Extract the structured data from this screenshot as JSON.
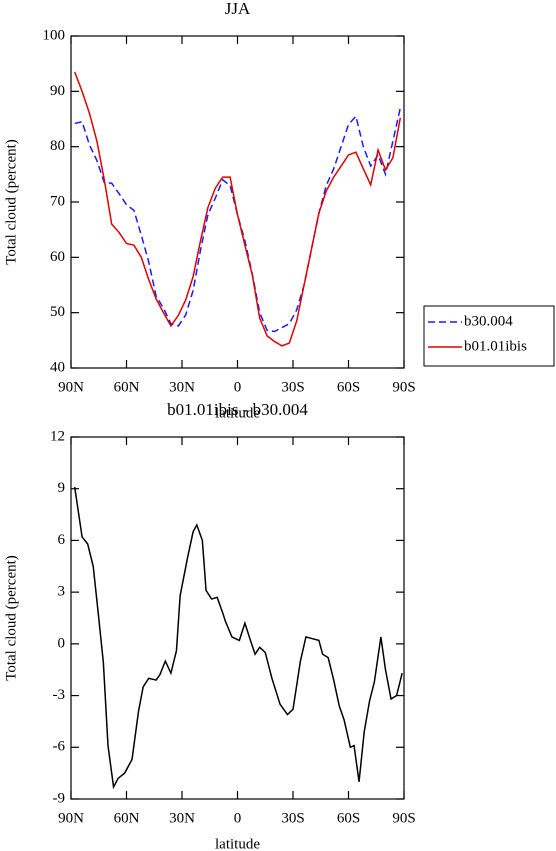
{
  "chart_data": [
    {
      "type": "line",
      "title": "JJA",
      "xlabel": "latitude",
      "ylabel": "Total cloud (percent)",
      "x": [
        88,
        84,
        80,
        76,
        72,
        68,
        64,
        60,
        56,
        52,
        48,
        44,
        40,
        36,
        32,
        28,
        24,
        20,
        16,
        12,
        8,
        4,
        0,
        -4,
        -8,
        -12,
        -16,
        -20,
        -24,
        -28,
        -32,
        -36,
        -40,
        -44,
        -48,
        -52,
        -56,
        -60,
        -64,
        -68,
        -72,
        -76,
        -80,
        -84,
        -88
      ],
      "series": [
        {
          "name": "b30.004",
          "color": "#1a1aff",
          "dashed": true,
          "values": [
            84.2,
            84.5,
            80.3,
            77.5,
            73.5,
            73.4,
            71.5,
            69.5,
            68.5,
            64,
            59.2,
            53,
            50.8,
            48,
            47.6,
            49.6,
            54,
            61.3,
            67.7,
            70.7,
            74,
            73,
            67.7,
            63,
            57,
            50,
            46.8,
            46.6,
            47.3,
            48,
            50.5,
            55,
            61.5,
            68,
            73,
            76,
            80,
            84,
            85.5,
            80,
            76.5,
            78.5,
            75,
            81,
            87
          ]
        },
        {
          "name": "b01.01ibis",
          "color": "#e00000",
          "dashed": false,
          "values": [
            93.5,
            90,
            86,
            81,
            74,
            66,
            64.5,
            62.5,
            62.2,
            60,
            56,
            52.5,
            50,
            47.6,
            49.5,
            52.3,
            56.5,
            63,
            69,
            72.5,
            74.5,
            74.5,
            67.7,
            62.2,
            56.8,
            49,
            45.8,
            44.8,
            44,
            44.5,
            48.5,
            55,
            61.5,
            68,
            72,
            74.5,
            76.5,
            78.5,
            79,
            76,
            73.1,
            79.4,
            75.8,
            78,
            85.2
          ]
        }
      ],
      "xlim": [
        90,
        -90
      ],
      "xticks": [
        {
          "value": 90,
          "label": "90N"
        },
        {
          "value": 60,
          "label": "60N"
        },
        {
          "value": 30,
          "label": "30N"
        },
        0,
        {
          "value": -30,
          "label": "30S"
        },
        {
          "value": -60,
          "label": "60S"
        },
        {
          "value": -90,
          "label": "90S"
        }
      ],
      "ylim": [
        40,
        100
      ],
      "yticks": [
        40,
        50,
        60,
        70,
        80,
        90,
        100
      ],
      "legend": "right"
    },
    {
      "type": "line",
      "title": "b01.01ibis - b30.004",
      "xlabel": "latitude",
      "ylabel": "Total cloud (percent)",
      "x": [
        88,
        84,
        81,
        78,
        75,
        72.5,
        70,
        67,
        64.5,
        61,
        57,
        53.5,
        51,
        48,
        44,
        42,
        39,
        36,
        33,
        31,
        27,
        24,
        22,
        19,
        17,
        14,
        11,
        8,
        6.5,
        3,
        -1,
        -4,
        -7,
        -9.5,
        -12,
        -15,
        -18.6,
        -23,
        -27,
        -30,
        -34,
        -37,
        -40.5,
        -44,
        -46,
        -49,
        -52,
        -55,
        -57.6,
        -61,
        -63,
        -65.7,
        -68.5,
        -71.4,
        -74,
        -77.5,
        -80,
        -83,
        -86,
        -89
      ],
      "values": [
        9.1,
        6.2,
        5.8,
        4.5,
        1.5,
        -1.1,
        -5.9,
        -8.3,
        -7.8,
        -7.5,
        -6.7,
        -3.9,
        -2.5,
        -2,
        -2.1,
        -1.8,
        -1,
        -1.7,
        -0.4,
        2.8,
        5.0,
        6.5,
        6.9,
        6,
        3.1,
        2.6,
        2.7,
        1.8,
        1.3,
        0.4,
        0.2,
        1.2,
        0.2,
        -0.6,
        -0.2,
        -0.5,
        -2,
        -3.5,
        -4.1,
        -3.8,
        -1,
        0.4,
        0.3,
        0.2,
        -0.6,
        -0.8,
        -2.1,
        -3.6,
        -4.4,
        -6,
        -5.9,
        -8,
        -5.1,
        -3.3,
        -2.2,
        0.4,
        -1.5,
        -3.2,
        -3,
        -1.7
      ],
      "color": "#000000",
      "xlim": [
        90,
        -90
      ],
      "xticks": [
        {
          "value": 90,
          "label": "90N"
        },
        {
          "value": 60,
          "label": "60N"
        },
        {
          "value": 30,
          "label": "30N"
        },
        0,
        {
          "value": -30,
          "label": "30S"
        },
        {
          "value": -60,
          "label": "60S"
        },
        {
          "value": -90,
          "label": "90S"
        }
      ],
      "ylim": [
        -9,
        12
      ],
      "yticks": [
        -9,
        -6,
        -3,
        0,
        3,
        6,
        9,
        12
      ]
    }
  ]
}
